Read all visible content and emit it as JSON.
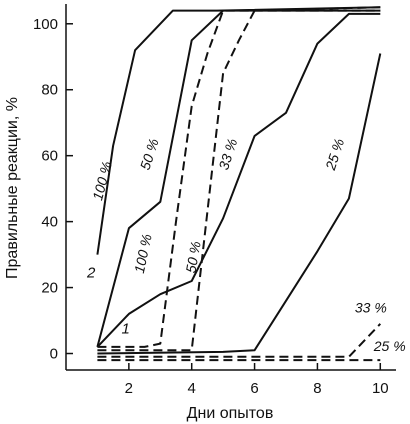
{
  "chart_data": {
    "type": "line",
    "xlabel": "Дни опытов",
    "ylabel": "Правильные реакции, %",
    "xlim": [
      0,
      10.5
    ],
    "ylim": [
      -5,
      106
    ],
    "xticks": [
      2,
      4,
      6,
      8,
      10
    ],
    "yticks": [
      0,
      20,
      40,
      60,
      80,
      100
    ],
    "grid": false,
    "group_labels": [
      "1",
      "2"
    ],
    "series": [
      {
        "name": "100 %",
        "group": "2",
        "style": "solid",
        "x": [
          1,
          1.5,
          2.2,
          3.4,
          4.8,
          10
        ],
        "y": [
          30,
          63,
          92,
          104,
          104,
          105
        ]
      },
      {
        "name": "50 %",
        "group": "2",
        "style": "solid",
        "x": [
          1,
          2,
          3,
          4,
          5,
          10
        ],
        "y": [
          2,
          38,
          46,
          95,
          104,
          104
        ]
      },
      {
        "name": "33 %",
        "group": "2",
        "style": "solid",
        "x": [
          1,
          2,
          3,
          4,
          5,
          6,
          7,
          8,
          9,
          10
        ],
        "y": [
          2,
          12,
          18,
          22,
          41,
          66,
          73,
          94,
          103,
          103
        ]
      },
      {
        "name": "25 %",
        "group": "2",
        "style": "solid",
        "x": [
          1,
          5,
          6,
          7,
          8,
          9,
          10
        ],
        "y": [
          0,
          0.5,
          1,
          16,
          31,
          47,
          91
        ]
      },
      {
        "name": "100 %",
        "group": "1",
        "style": "dashed",
        "x": [
          1,
          2.5,
          3,
          3.5,
          4,
          4.5,
          5,
          10
        ],
        "y": [
          2,
          2,
          3,
          40,
          75,
          91,
          104,
          104
        ]
      },
      {
        "name": "50 %",
        "group": "1",
        "style": "dashed",
        "x": [
          1,
          4,
          5,
          5.5,
          6,
          10
        ],
        "y": [
          1,
          1,
          85,
          95,
          104,
          105
        ]
      },
      {
        "name": "33 %",
        "group": "1",
        "style": "dashed",
        "x": [
          1,
          9,
          10
        ],
        "y": [
          -1,
          -1,
          9
        ]
      },
      {
        "name": "25 %",
        "group": "1",
        "style": "dashed",
        "x": [
          1,
          10
        ],
        "y": [
          -2,
          -2
        ]
      }
    ]
  }
}
